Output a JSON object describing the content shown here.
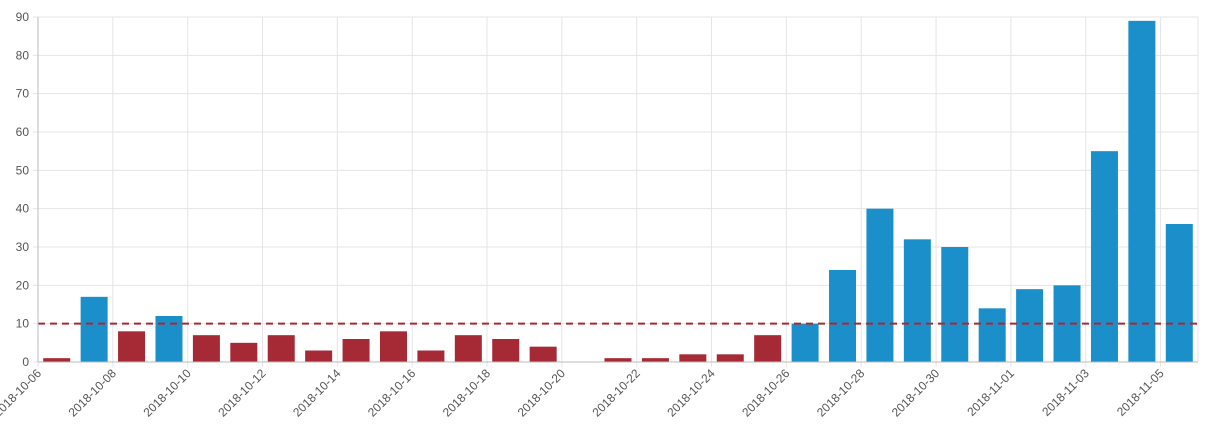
{
  "chart_data": {
    "type": "bar",
    "categories": [
      "2018-10-06",
      "2018-10-07",
      "2018-10-08",
      "2018-10-09",
      "2018-10-10",
      "2018-10-11",
      "2018-10-12",
      "2018-10-13",
      "2018-10-14",
      "2018-10-15",
      "2018-10-16",
      "2018-10-17",
      "2018-10-18",
      "2018-10-19",
      "2018-10-20",
      "2018-10-21",
      "2018-10-22",
      "2018-10-23",
      "2018-10-24",
      "2018-10-25",
      "2018-10-26",
      "2018-10-27",
      "2018-10-28",
      "2018-10-29",
      "2018-10-30",
      "2018-10-31",
      "2018-11-01",
      "2018-11-02",
      "2018-11-03",
      "2018-11-04",
      "2018-11-05"
    ],
    "x_tick_labels": [
      "2018-10-06",
      "2018-10-08",
      "2018-10-10",
      "2018-10-12",
      "2018-10-14",
      "2018-10-16",
      "2018-10-18",
      "2018-10-20",
      "2018-10-22",
      "2018-10-24",
      "2018-10-26",
      "2018-10-28",
      "2018-10-30",
      "2018-11-01",
      "2018-11-03",
      "2018-11-05"
    ],
    "values": [
      1,
      17,
      8,
      12,
      7,
      5,
      7,
      3,
      6,
      8,
      3,
      7,
      6,
      4,
      0,
      1,
      1,
      2,
      2,
      7,
      10,
      24,
      40,
      32,
      30,
      14,
      19,
      20,
      55,
      89,
      36
    ],
    "threshold": 10,
    "ylim": [
      0,
      90
    ],
    "y_ticks": [
      0,
      10,
      20,
      30,
      40,
      50,
      60,
      70,
      80,
      90
    ],
    "grid": true,
    "colors": {
      "above_threshold": "#1b8fc9",
      "below_threshold": "#a52a35",
      "threshold_line": "#a52a35",
      "grid": "#e5e5e5",
      "axis": "#bbbbbb",
      "tick_text": "#555555"
    },
    "title": "",
    "xlabel": "",
    "ylabel": ""
  }
}
